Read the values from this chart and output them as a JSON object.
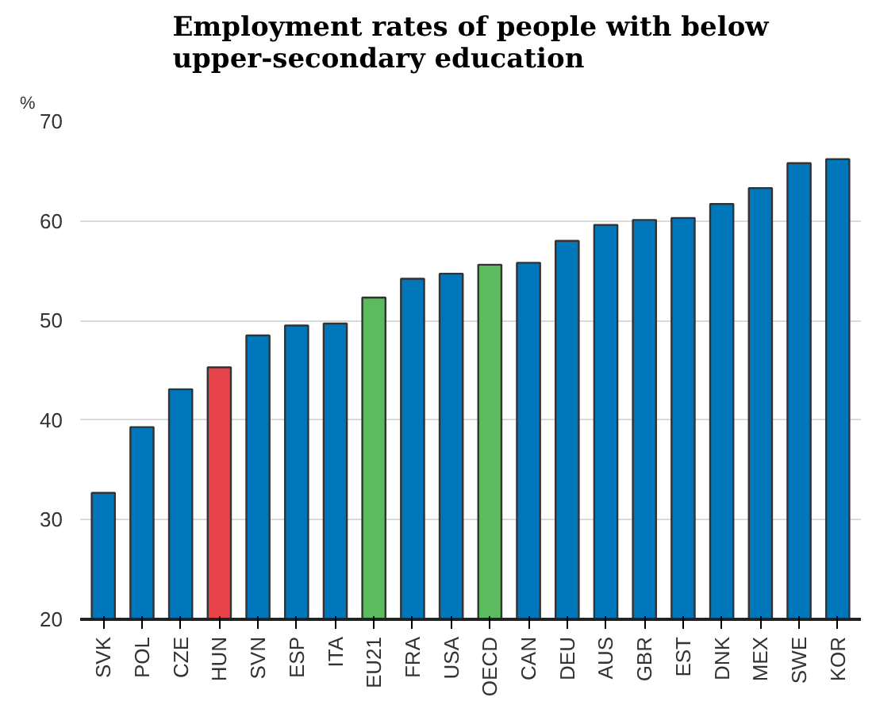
{
  "chart_data": {
    "type": "bar",
    "title": "Employment rates of people with below upper-secondary education",
    "ylabel": "%",
    "categories": [
      "SVK",
      "POL",
      "CZE",
      "HUN",
      "SVN",
      "ESP",
      "ITA",
      "EU21",
      "FRA",
      "USA",
      "OECD",
      "CAN",
      "DEU",
      "AUS",
      "GBR",
      "EST",
      "DNK",
      "MEX",
      "SWE",
      "KOR"
    ],
    "values": [
      32.7,
      39.3,
      43.1,
      45.3,
      48.5,
      49.5,
      49.7,
      52.3,
      54.2,
      54.7,
      55.6,
      55.8,
      58.0,
      59.6,
      60.1,
      60.3,
      61.7,
      63.3,
      65.8,
      66.2
    ],
    "colors": [
      "#0077bb",
      "#0077bb",
      "#0077bb",
      "#e8434a",
      "#0077bb",
      "#0077bb",
      "#0077bb",
      "#5cbb5e",
      "#0077bb",
      "#0077bb",
      "#5cbb5e",
      "#0077bb",
      "#0077bb",
      "#0077bb",
      "#0077bb",
      "#0077bb",
      "#0077bb",
      "#0077bb",
      "#0077bb",
      "#0077bb"
    ],
    "ylim": [
      20,
      70
    ],
    "yticks": [
      20,
      30,
      40,
      50,
      60,
      70
    ],
    "grid": "y"
  }
}
